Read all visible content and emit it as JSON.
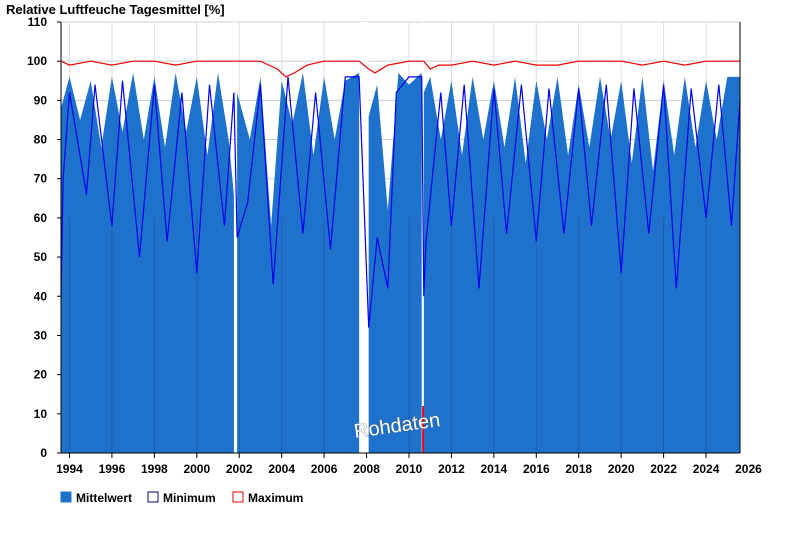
{
  "chart_data": {
    "type": "area",
    "title": "Relative Luftfeuche Tagesmittel [%]",
    "xlabel": "",
    "ylabel": "",
    "ylim": [
      0,
      110
    ],
    "xlim": [
      1993.6,
      2025.6
    ],
    "y_ticks": [
      0,
      10,
      20,
      30,
      40,
      50,
      60,
      70,
      80,
      90,
      100,
      110
    ],
    "x_ticks": [
      1994,
      1996,
      1998,
      2000,
      2002,
      2004,
      2006,
      2008,
      2010,
      2012,
      2014,
      2016,
      2018,
      2020,
      2022,
      2024,
      2026
    ],
    "x_tick_labels": [
      "1994",
      "1996",
      "1998",
      "2000",
      "2002",
      "2004",
      "2006",
      "2008",
      "2010",
      "2012",
      "2014",
      "2016",
      "2018",
      "2020",
      "2022",
      "2024",
      "2026"
    ],
    "grid": {
      "horizontal": true,
      "vertical": true
    },
    "legend_position": "bottom-left",
    "annotation": "Rohdaten",
    "colors": {
      "mean": "#1e72cc",
      "min": "#0000ee",
      "max": "#ee0000"
    },
    "data_gaps": [
      [
        2001.75,
        2001.9
      ],
      [
        2007.65,
        2008.1
      ],
      [
        2010.6,
        2010.7
      ]
    ],
    "series": [
      {
        "name": "Mittelwert",
        "style": "filled-area",
        "x": [
          1993.6,
          1994.0,
          1994.5,
          1995.0,
          1995.5,
          1996.0,
          1996.5,
          1997.0,
          1997.5,
          1998.0,
          1998.5,
          1999.0,
          1999.5,
          2000.0,
          2000.5,
          2001.0,
          2001.5,
          2001.75,
          2001.9,
          2002.5,
          2003.0,
          2003.5,
          2004.0,
          2004.5,
          2005.0,
          2005.5,
          2006.0,
          2006.5,
          2007.0,
          2007.65,
          2008.1,
          2008.5,
          2009.0,
          2009.5,
          2010.0,
          2010.6,
          2010.7,
          2011.0,
          2011.5,
          2012.0,
          2012.5,
          2013.0,
          2013.5,
          2014.0,
          2014.5,
          2015.0,
          2015.5,
          2016.0,
          2016.5,
          2017.0,
          2017.5,
          2018.0,
          2018.5,
          2019.0,
          2019.5,
          2020.0,
          2020.5,
          2021.0,
          2021.5,
          2022.0,
          2022.5,
          2023.0,
          2023.5,
          2024.0,
          2024.5,
          2025.0,
          2025.6
        ],
        "values": [
          88,
          96,
          85,
          95,
          78,
          96,
          82,
          97,
          80,
          96,
          78,
          97,
          82,
          96,
          76,
          97,
          80,
          66,
          92,
          80,
          96,
          58,
          95,
          84,
          97,
          76,
          96,
          80,
          95,
          97,
          86,
          94,
          62,
          97,
          94,
          97,
          92,
          96,
          80,
          95,
          76,
          96,
          80,
          95,
          78,
          96,
          74,
          95,
          80,
          96,
          76,
          94,
          78,
          96,
          80,
          95,
          74,
          96,
          72,
          95,
          76,
          96,
          78,
          95,
          80,
          96,
          96
        ]
      },
      {
        "name": "Minimum",
        "style": "line",
        "x": [
          1993.6,
          1993.7,
          1994.0,
          1994.8,
          1995.2,
          1996.0,
          1996.5,
          1997.3,
          1998.0,
          1998.6,
          1999.3,
          2000.0,
          2000.6,
          2001.3,
          2001.75,
          2001.9,
          2002.4,
          2003.0,
          2003.6,
          2004.3,
          2005.0,
          2005.6,
          2006.3,
          2007.0,
          2007.65,
          2008.1,
          2008.5,
          2009.0,
          2009.4,
          2010.0,
          2010.6,
          2010.7,
          2010.8,
          2011.5,
          2012.0,
          2012.6,
          2013.3,
          2014.0,
          2014.6,
          2015.3,
          2016.0,
          2016.6,
          2017.3,
          2018.0,
          2018.6,
          2019.3,
          2020.0,
          2020.6,
          2021.3,
          2022.0,
          2022.6,
          2023.3,
          2024.0,
          2024.6,
          2025.2,
          2025.6
        ],
        "values": [
          40,
          70,
          92,
          66,
          94,
          58,
          95,
          50,
          94,
          54,
          92,
          46,
          94,
          58,
          92,
          55,
          64,
          94,
          43,
          96,
          56,
          92,
          52,
          96,
          96,
          32,
          55,
          42,
          92,
          96,
          96,
          40,
          54,
          92,
          58,
          94,
          42,
          93,
          56,
          94,
          54,
          93,
          56,
          93,
          58,
          94,
          46,
          93,
          56,
          94,
          42,
          93,
          60,
          94,
          58,
          90
        ]
      },
      {
        "name": "Maximum",
        "style": "line",
        "x": [
          1993.6,
          1994.0,
          1995.0,
          1996.0,
          1997.0,
          1998.0,
          1999.0,
          2000.0,
          2001.0,
          2001.75,
          2001.9,
          2003.0,
          2003.8,
          2004.2,
          2004.6,
          2005.2,
          2006.0,
          2007.0,
          2007.65,
          2008.1,
          2008.4,
          2009.0,
          2010.0,
          2010.6,
          2010.7,
          2011.0,
          2011.4,
          2012.0,
          2013.0,
          2014.0,
          2015.0,
          2016.0,
          2017.0,
          2018.0,
          2019.0,
          2020.0,
          2021.0,
          2022.0,
          2023.0,
          2024.0,
          2025.0,
          2025.6
        ],
        "values": [
          100,
          99,
          100,
          99,
          100,
          100,
          99,
          100,
          100,
          100,
          100,
          100,
          98,
          96,
          97,
          99,
          100,
          100,
          100,
          98,
          97,
          99,
          100,
          100,
          100,
          98,
          99,
          99,
          100,
          99,
          100,
          99,
          99,
          100,
          100,
          100,
          99,
          100,
          99,
          100,
          100,
          100
        ]
      }
    ]
  }
}
